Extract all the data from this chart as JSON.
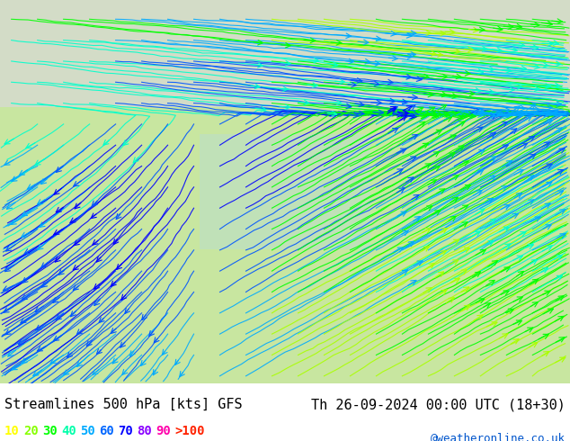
{
  "title_left": "Streamlines 500 hPa [kts] GFS",
  "title_right": "Th 26-09-2024 00:00 UTC (18+30)",
  "credit": "@weatheronline.co.uk",
  "legend_values": [
    "10",
    "20",
    "30",
    "40",
    "50",
    "60",
    "70",
    "80",
    "90",
    ">100"
  ],
  "legend_colors": [
    "#ffff00",
    "#ccff00",
    "#00ff00",
    "#00ffcc",
    "#00ccff",
    "#0088ff",
    "#0044ff",
    "#ff00ff",
    "#ff0088",
    "#ff0000"
  ],
  "background_color": "#ffffff",
  "map_bg_color": "#e8f5e0",
  "land_color": "#d0e8b0",
  "sea_color": "#e0f0ff",
  "fig_width": 6.34,
  "fig_height": 4.9,
  "dpi": 100
}
